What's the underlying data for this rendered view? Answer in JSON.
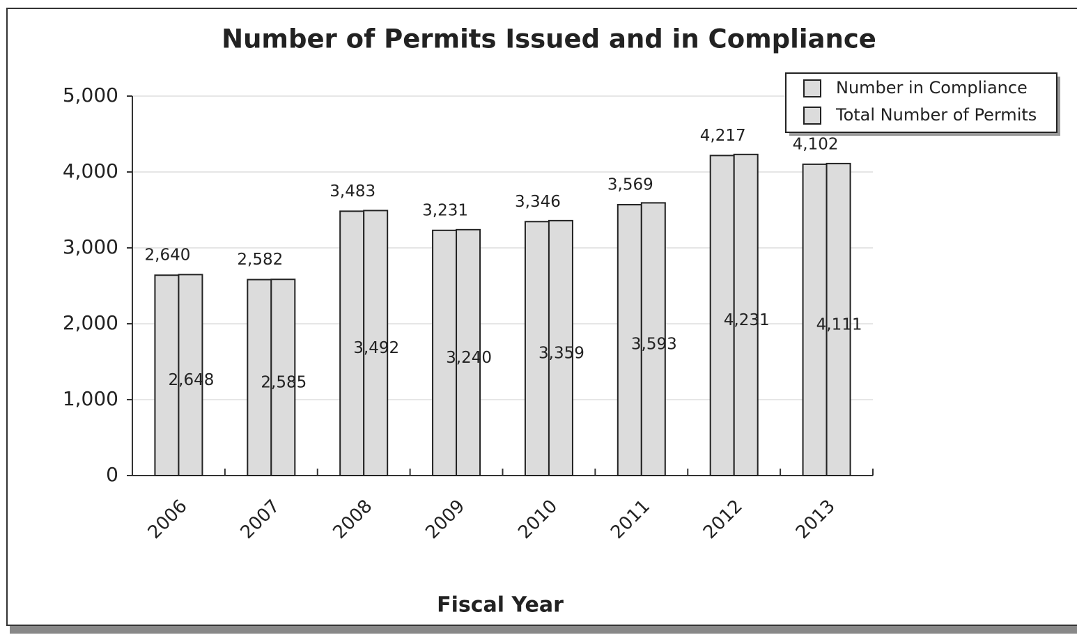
{
  "chart_data": {
    "type": "bar",
    "title": "Number of Permits Issued and in Compliance",
    "x_label": "Fiscal Year",
    "categories": [
      "2006",
      "2007",
      "2008",
      "2009",
      "2010",
      "2011",
      "2012",
      "2013"
    ],
    "series": [
      {
        "name": "Number in Compliance",
        "color": "#dcdcdc",
        "values": [
          2640,
          2582,
          3483,
          3231,
          3346,
          3569,
          4217,
          4102
        ],
        "value_labels": [
          "2,640",
          "2,582",
          "3,483",
          "3,231",
          "3,346",
          "3,569",
          "4,217",
          "4,102"
        ]
      },
      {
        "name": "Total Number of Permits",
        "color": "#dcdcdc",
        "values": [
          2648,
          2585,
          3492,
          3240,
          3359,
          3593,
          4231,
          4111
        ],
        "value_labels": [
          "2,648",
          "2,585",
          "3,492",
          "3,240",
          "3,359",
          "3,593",
          "4,231",
          "4,111"
        ]
      }
    ],
    "ylim": [
      0,
      5000
    ],
    "yticks": [
      0,
      {
        "value": 1000,
        "label": "1,000"
      },
      {
        "value": 2000,
        "label": "2,000"
      },
      {
        "value": 3000,
        "label": "3,000"
      },
      {
        "value": 4000,
        "label": "4,000"
      },
      {
        "value": 5000,
        "label": "5,000"
      }
    ],
    "grid": true,
    "legend": "upper right"
  }
}
